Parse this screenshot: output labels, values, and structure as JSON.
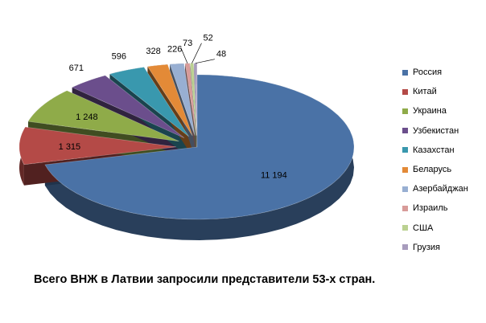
{
  "caption": "Всего ВНЖ в Латвии запросили представители 53-х стран.",
  "chart_data": {
    "type": "pie",
    "title": "",
    "legend_position": "right",
    "series": [
      {
        "name": "Россия",
        "value": 11194,
        "label": "11 194",
        "color": "#4a72a6"
      },
      {
        "name": "Китай",
        "value": 1315,
        "label": "1 315",
        "color": "#b44a47"
      },
      {
        "name": "Украина",
        "value": 1248,
        "label": "1 248",
        "color": "#8fab49"
      },
      {
        "name": "Узбекистан",
        "value": 671,
        "label": "671",
        "color": "#6b4e8c"
      },
      {
        "name": "Казахстан",
        "value": 596,
        "label": "596",
        "color": "#3998ae"
      },
      {
        "name": "Беларусь",
        "value": 328,
        "label": "328",
        "color": "#e38a37"
      },
      {
        "name": "Азербайджан",
        "value": 226,
        "label": "226",
        "color": "#98afd2"
      },
      {
        "name": "Израиль",
        "value": 73,
        "label": "73",
        "color": "#d89b99"
      },
      {
        "name": "США",
        "value": 52,
        "label": "52",
        "color": "#bbd191"
      },
      {
        "name": "Грузия",
        "value": 48,
        "label": "48",
        "color": "#a89cbd"
      }
    ]
  }
}
